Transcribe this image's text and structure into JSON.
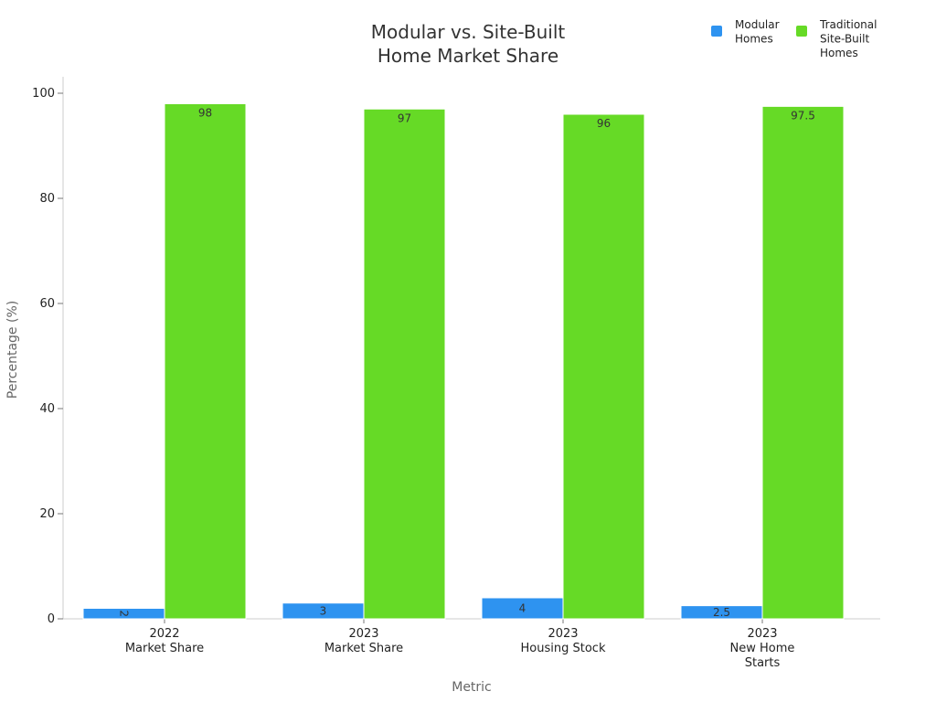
{
  "chart_data": {
    "type": "bar",
    "title_lines": [
      "Modular vs. Site-Built",
      "Home Market Share"
    ],
    "xlabel": "Metric",
    "ylabel": "Percentage (%)",
    "ylim": [
      0,
      100
    ],
    "yticks": [
      0,
      20,
      40,
      60,
      80,
      100
    ],
    "grid": false,
    "legend_position": "top-right",
    "categories": [
      [
        "2022",
        "Market Share"
      ],
      [
        "2023",
        "Market Share"
      ],
      [
        "2023",
        "Housing Stock"
      ],
      [
        "2023",
        "New Home",
        "Starts"
      ]
    ],
    "series": [
      {
        "name": "Modular Homes",
        "legend_lines": [
          "Modular",
          "Homes"
        ],
        "color": "#2E93F0",
        "values": [
          2,
          3,
          4,
          2.5
        ],
        "value_labels": [
          "2",
          "3",
          "4",
          "2.5"
        ]
      },
      {
        "name": "Traditional Site-Built Homes",
        "legend_lines": [
          "Traditional",
          "Site-Built",
          "Homes"
        ],
        "color": "#66DA26",
        "values": [
          98,
          97,
          96,
          97.5
        ],
        "value_labels": [
          "98",
          "97",
          "96",
          "97.5"
        ]
      }
    ]
  }
}
